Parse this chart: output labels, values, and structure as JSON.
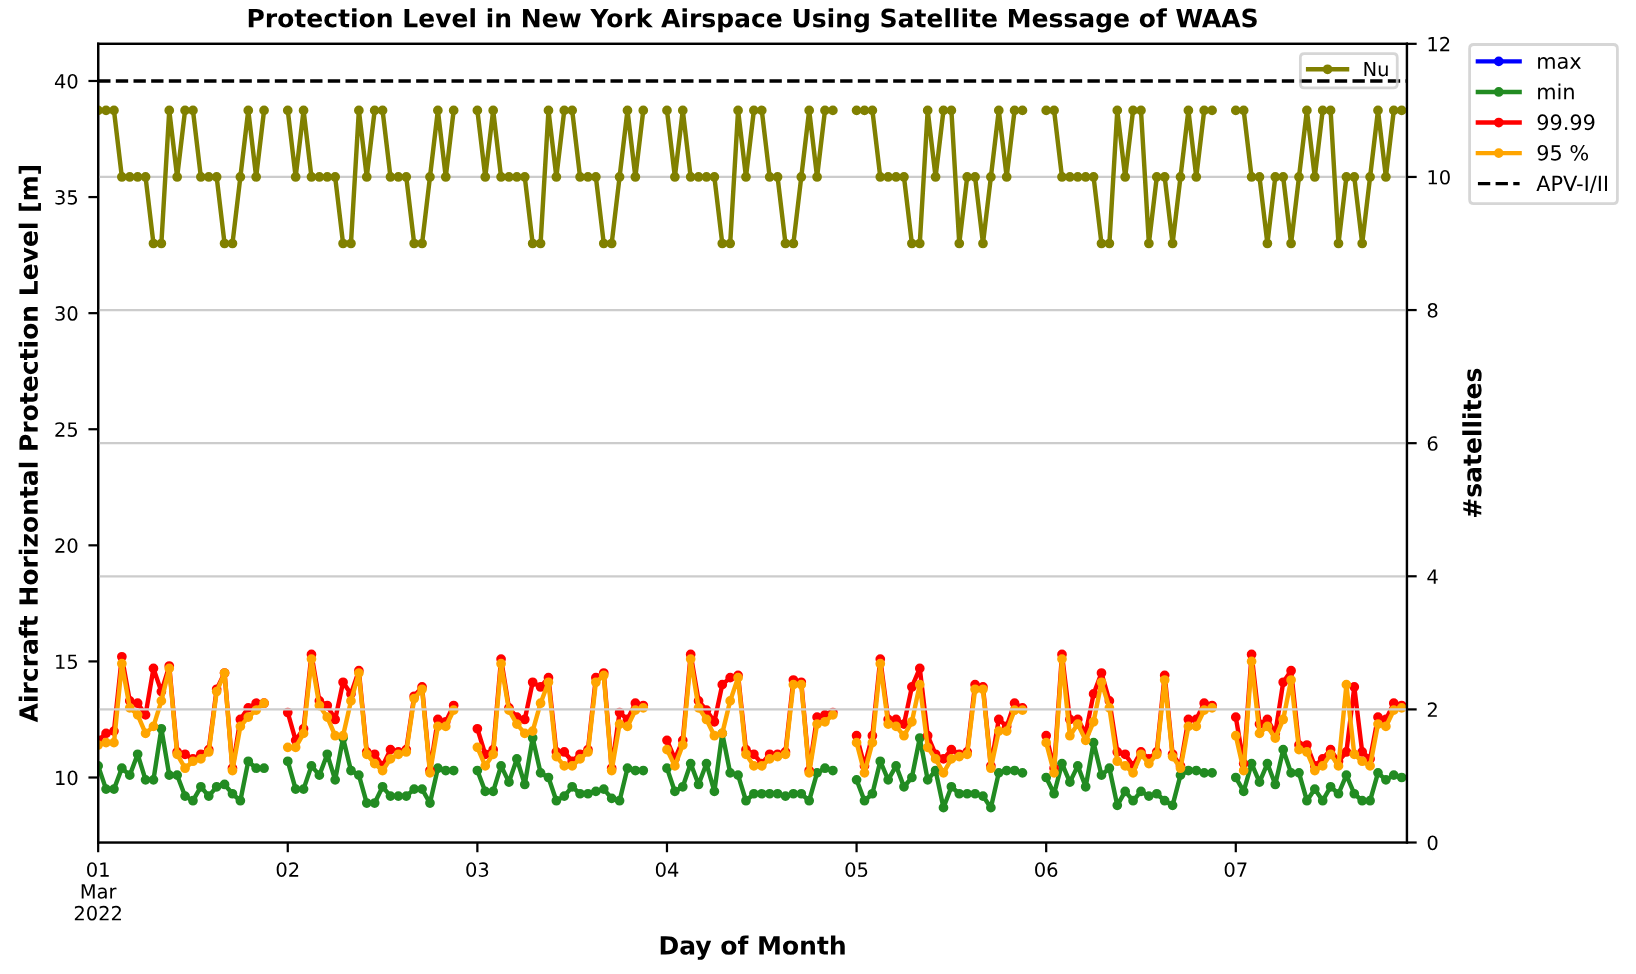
{
  "chart_data": {
    "type": "line",
    "title": "Protection Level in New York Airspace Using Satellite Message of WAAS",
    "xlabel": "Day of Month",
    "ylabel": "Aircraft Horizontal Protection Level [m]",
    "y2label": "#satellites",
    "x": [
      "2022-03-01T00:00",
      "2022-03-01T01:00",
      "2022-03-01T02:00",
      "2022-03-01T03:00",
      "2022-03-01T04:00",
      "2022-03-01T05:00",
      "2022-03-01T06:00",
      "2022-03-01T07:00",
      "2022-03-01T08:00",
      "2022-03-01T09:00",
      "2022-03-01T10:00",
      "2022-03-01T11:00",
      "2022-03-01T12:00",
      "2022-03-01T13:00",
      "2022-03-01T14:00",
      "2022-03-01T15:00",
      "2022-03-01T16:00",
      "2022-03-01T17:00",
      "2022-03-01T18:00",
      "2022-03-01T19:00",
      "2022-03-01T20:00",
      "2022-03-01T21:00",
      "2022-03-01T22:00",
      "2022-03-02T00:00",
      "2022-03-02T01:00",
      "2022-03-02T02:00",
      "2022-03-02T03:00",
      "2022-03-02T04:00",
      "2022-03-02T05:00",
      "2022-03-02T06:00",
      "2022-03-02T07:00",
      "2022-03-02T08:00",
      "2022-03-02T09:00",
      "2022-03-02T10:00",
      "2022-03-02T11:00",
      "2022-03-02T12:00",
      "2022-03-02T13:00",
      "2022-03-02T14:00",
      "2022-03-02T15:00",
      "2022-03-02T16:00",
      "2022-03-02T17:00",
      "2022-03-02T18:00",
      "2022-03-02T19:00",
      "2022-03-02T20:00",
      "2022-03-02T21:00",
      "2022-03-02T22:00",
      "2022-03-03T00:00",
      "2022-03-03T01:00",
      "2022-03-03T02:00",
      "2022-03-03T03:00",
      "2022-03-03T04:00",
      "2022-03-03T05:00",
      "2022-03-03T06:00",
      "2022-03-03T07:00",
      "2022-03-03T08:00",
      "2022-03-03T09:00",
      "2022-03-03T10:00",
      "2022-03-03T11:00",
      "2022-03-03T12:00",
      "2022-03-03T13:00",
      "2022-03-03T14:00",
      "2022-03-03T15:00",
      "2022-03-03T16:00",
      "2022-03-03T17:00",
      "2022-03-03T18:00",
      "2022-03-03T19:00",
      "2022-03-03T20:00",
      "2022-03-03T21:00",
      "2022-03-03T22:00",
      "2022-03-04T00:00",
      "2022-03-04T01:00",
      "2022-03-04T02:00",
      "2022-03-04T03:00",
      "2022-03-04T04:00",
      "2022-03-04T05:00",
      "2022-03-04T06:00",
      "2022-03-04T07:00",
      "2022-03-04T08:00",
      "2022-03-04T09:00",
      "2022-03-04T10:00",
      "2022-03-04T11:00",
      "2022-03-04T12:00",
      "2022-03-04T13:00",
      "2022-03-04T14:00",
      "2022-03-04T15:00",
      "2022-03-04T16:00",
      "2022-03-04T17:00",
      "2022-03-04T18:00",
      "2022-03-04T19:00",
      "2022-03-04T20:00",
      "2022-03-04T21:00",
      "2022-03-04T22:00",
      "2022-03-05T00:00",
      "2022-03-05T01:00",
      "2022-03-05T02:00",
      "2022-03-05T03:00",
      "2022-03-05T04:00",
      "2022-03-05T05:00",
      "2022-03-05T06:00",
      "2022-03-05T07:00",
      "2022-03-05T08:00",
      "2022-03-05T09:00",
      "2022-03-05T10:00",
      "2022-03-05T11:00",
      "2022-03-05T12:00",
      "2022-03-05T13:00",
      "2022-03-05T14:00",
      "2022-03-05T15:00",
      "2022-03-05T16:00",
      "2022-03-05T17:00",
      "2022-03-05T18:00",
      "2022-03-05T19:00",
      "2022-03-05T20:00",
      "2022-03-05T21:00",
      "2022-03-05T22:00",
      "2022-03-06T00:00",
      "2022-03-06T01:00",
      "2022-03-06T02:00",
      "2022-03-06T03:00",
      "2022-03-06T04:00",
      "2022-03-06T05:00",
      "2022-03-06T06:00",
      "2022-03-06T07:00",
      "2022-03-06T08:00",
      "2022-03-06T09:00",
      "2022-03-06T10:00",
      "2022-03-06T11:00",
      "2022-03-06T12:00",
      "2022-03-06T13:00",
      "2022-03-06T14:00",
      "2022-03-06T15:00",
      "2022-03-06T16:00",
      "2022-03-06T17:00",
      "2022-03-06T18:00",
      "2022-03-06T19:00",
      "2022-03-06T20:00",
      "2022-03-06T21:00",
      "2022-03-06T22:00",
      "2022-03-07T00:00",
      "2022-03-07T01:00",
      "2022-03-07T02:00",
      "2022-03-07T03:00",
      "2022-03-07T04:00",
      "2022-03-07T05:00",
      "2022-03-07T06:00",
      "2022-03-07T07:00",
      "2022-03-07T08:00",
      "2022-03-07T09:00",
      "2022-03-07T10:00",
      "2022-03-07T11:00",
      "2022-03-07T12:00",
      "2022-03-07T13:00",
      "2022-03-07T14:00",
      "2022-03-07T15:00",
      "2022-03-07T16:00",
      "2022-03-07T17:00",
      "2022-03-07T18:00",
      "2022-03-07T19:00",
      "2022-03-07T20:00",
      "2022-03-07T21:00"
    ],
    "series": [
      {
        "name": "max",
        "color": "#0000ff",
        "values": [
          null,
          null,
          null,
          null,
          null,
          null,
          null,
          null,
          null,
          null,
          null,
          null,
          null,
          null,
          null,
          null,
          null,
          null,
          null,
          null,
          null,
          null,
          null,
          null,
          null,
          null,
          null,
          null,
          null,
          null,
          null,
          null,
          null,
          null,
          null,
          null,
          null,
          null,
          null,
          null,
          null,
          null,
          null,
          null,
          null,
          null,
          null,
          null,
          null,
          null,
          null,
          null,
          null,
          null,
          null,
          null,
          null,
          null,
          null,
          null,
          null,
          null,
          null,
          null,
          null,
          null,
          null,
          null,
          null,
          null,
          null,
          null,
          null,
          null,
          null,
          null,
          null,
          null,
          null,
          null,
          null,
          null,
          null,
          null,
          null,
          null,
          null,
          null,
          null,
          null,
          null,
          null,
          null,
          null,
          null,
          null,
          null,
          null,
          null,
          null,
          null,
          null,
          null,
          null,
          null,
          null,
          null,
          null,
          null,
          null,
          null,
          null,
          null,
          null,
          null,
          null,
          null,
          null,
          null,
          null,
          null,
          null,
          null,
          null,
          null,
          null,
          null,
          null,
          null,
          null,
          null,
          null,
          null,
          null,
          null,
          null,
          null,
          null,
          null,
          null,
          null,
          null,
          null,
          null,
          null,
          null,
          null,
          null,
          null,
          null,
          null,
          null,
          null,
          null,
          null,
          null,
          null,
          null,
          null,
          null
        ]
      },
      {
        "name": "min",
        "color": "#228b22",
        "values": [
          10.5,
          9.5,
          9.5,
          10.4,
          10.1,
          11.0,
          9.9,
          9.9,
          12.1,
          10.1,
          10.1,
          9.2,
          9.0,
          9.6,
          9.2,
          9.6,
          9.7,
          9.3,
          9.0,
          10.7,
          10.4,
          10.4,
          null,
          10.7,
          9.5,
          9.5,
          10.5,
          10.1,
          11.0,
          9.9,
          11.7,
          10.3,
          10.1,
          8.9,
          8.9,
          9.6,
          9.2,
          9.2,
          9.2,
          9.5,
          9.5,
          8.9,
          10.4,
          10.3,
          10.3,
          null,
          10.3,
          9.4,
          9.4,
          10.5,
          9.8,
          10.8,
          9.7,
          11.7,
          10.2,
          10.0,
          9.0,
          9.2,
          9.6,
          9.3,
          9.3,
          9.4,
          9.5,
          9.1,
          9.0,
          10.4,
          10.3,
          10.3,
          null,
          10.4,
          9.4,
          9.6,
          10.6,
          9.7,
          10.6,
          9.4,
          11.9,
          10.2,
          10.1,
          9.0,
          9.3,
          9.3,
          9.3,
          9.3,
          9.2,
          9.3,
          9.3,
          9.0,
          10.2,
          10.4,
          10.3,
          null,
          9.9,
          9.0,
          9.3,
          10.7,
          9.9,
          10.5,
          9.6,
          10.0,
          11.7,
          9.9,
          10.3,
          8.7,
          9.6,
          9.3,
          9.3,
          9.3,
          9.2,
          8.7,
          10.2,
          10.3,
          10.3,
          10.2,
          null,
          10.0,
          9.3,
          10.6,
          9.8,
          10.5,
          9.6,
          11.5,
          10.1,
          10.4,
          8.8,
          9.4,
          9.0,
          9.4,
          9.2,
          9.3,
          9.0,
          8.8,
          10.1,
          10.3,
          10.3,
          10.2,
          10.2,
          null,
          10.0,
          9.4,
          10.6,
          9.8,
          10.6,
          9.7,
          11.2,
          10.2,
          10.2,
          9.0,
          9.5,
          9.0,
          9.6,
          9.3,
          10.1,
          9.3,
          9.0,
          9.0,
          10.2,
          9.9,
          10.1,
          10.0
        ]
      },
      {
        "name": "99.99",
        "color": "#ff0000",
        "values": [
          11.6,
          11.9,
          12.0,
          15.2,
          13.3,
          13.2,
          12.7,
          14.7,
          13.7,
          14.8,
          11.1,
          11.0,
          10.8,
          11.0,
          11.2,
          13.8,
          14.5,
          10.4,
          12.5,
          13.0,
          13.2,
          13.2,
          null,
          12.8,
          11.6,
          12.1,
          15.3,
          13.3,
          13.1,
          12.5,
          14.1,
          13.6,
          14.6,
          11.1,
          11.0,
          10.5,
          11.2,
          11.1,
          11.2,
          13.5,
          13.9,
          10.3,
          12.5,
          12.4,
          13.1,
          null,
          12.1,
          11.0,
          11.2,
          15.1,
          13.0,
          12.6,
          12.5,
          14.1,
          13.9,
          14.3,
          11.1,
          11.1,
          10.7,
          11.0,
          11.2,
          14.3,
          14.5,
          10.4,
          12.8,
          12.5,
          13.2,
          13.1,
          null,
          11.6,
          10.8,
          11.6,
          15.3,
          13.3,
          12.9,
          12.4,
          14.0,
          14.3,
          14.4,
          11.2,
          11.0,
          10.6,
          11.0,
          11.0,
          11.1,
          14.2,
          14.1,
          10.3,
          12.6,
          12.7,
          12.8,
          null,
          11.8,
          10.5,
          11.8,
          15.1,
          12.5,
          12.5,
          12.3,
          13.9,
          14.7,
          11.8,
          11.0,
          10.8,
          11.2,
          11.0,
          11.1,
          14.0,
          13.9,
          10.5,
          12.5,
          12.2,
          13.2,
          13.0,
          null,
          11.8,
          10.4,
          15.3,
          12.5,
          12.5,
          11.9,
          13.6,
          14.5,
          13.3,
          11.1,
          11.0,
          10.5,
          11.1,
          10.8,
          11.1,
          14.4,
          11.0,
          10.5,
          12.5,
          12.5,
          13.2,
          13.1,
          null,
          12.6,
          10.6,
          15.3,
          12.3,
          12.5,
          11.9,
          14.1,
          14.6,
          11.4,
          11.4,
          10.5,
          10.8,
          11.2,
          10.7,
          11.1,
          13.9,
          11.1,
          10.8,
          12.6,
          12.5,
          13.2,
          13.1
        ]
      },
      {
        "name": "95 %",
        "color": "#ffa500",
        "values": [
          11.4,
          11.5,
          11.5,
          14.9,
          13.0,
          12.7,
          11.9,
          12.2,
          13.3,
          14.7,
          11.0,
          10.4,
          10.7,
          10.8,
          11.1,
          13.7,
          14.5,
          10.3,
          12.2,
          12.6,
          12.9,
          13.2,
          null,
          11.3,
          11.3,
          11.9,
          15.1,
          13.1,
          12.6,
          11.8,
          11.8,
          13.3,
          14.5,
          11.0,
          10.6,
          10.3,
          10.8,
          11.0,
          11.1,
          13.4,
          13.8,
          10.2,
          12.2,
          12.2,
          12.9,
          null,
          11.3,
          10.5,
          11.0,
          14.9,
          12.9,
          12.3,
          11.9,
          12.0,
          13.2,
          14.1,
          10.9,
          10.5,
          10.5,
          10.8,
          11.1,
          14.1,
          14.4,
          10.3,
          12.3,
          12.2,
          12.9,
          13.0,
          null,
          11.2,
          10.5,
          11.4,
          15.1,
          13.0,
          12.5,
          11.8,
          11.9,
          13.3,
          14.3,
          11.0,
          10.5,
          10.5,
          10.8,
          10.9,
          11.0,
          14.0,
          14.0,
          10.2,
          12.3,
          12.4,
          12.7,
          null,
          11.5,
          10.2,
          11.5,
          14.9,
          12.3,
          12.2,
          11.8,
          12.4,
          14.0,
          11.3,
          10.8,
          10.2,
          10.8,
          10.9,
          11.0,
          13.8,
          13.8,
          10.4,
          12.0,
          12.0,
          12.9,
          12.9,
          null,
          11.5,
          10.2,
          15.1,
          11.8,
          12.3,
          11.6,
          12.4,
          14.1,
          13.0,
          10.7,
          10.5,
          10.2,
          11.0,
          10.6,
          11.0,
          14.2,
          10.9,
          10.4,
          12.2,
          12.2,
          12.9,
          13.0,
          null,
          11.8,
          10.3,
          15.0,
          11.9,
          12.2,
          11.7,
          12.5,
          14.2,
          11.2,
          11.1,
          10.3,
          10.5,
          11.0,
          10.5,
          14.0,
          11.0,
          10.7,
          10.5,
          12.3,
          12.2,
          12.9,
          13.0
        ]
      },
      {
        "name": "Nu",
        "color": "#808000",
        "axis": "y2",
        "values": [
          11,
          11,
          11,
          10,
          10,
          10,
          10,
          9,
          9,
          11,
          10,
          11,
          11,
          10,
          10,
          10,
          9,
          9,
          10,
          11,
          10,
          11,
          null,
          11,
          10,
          11,
          10,
          10,
          10,
          10,
          9,
          9,
          11,
          10,
          11,
          11,
          10,
          10,
          10,
          9,
          9,
          10,
          11,
          10,
          11,
          null,
          11,
          10,
          11,
          10,
          10,
          10,
          10,
          9,
          9,
          11,
          10,
          11,
          11,
          10,
          10,
          10,
          9,
          9,
          10,
          11,
          10,
          11,
          null,
          11,
          10,
          11,
          10,
          10,
          10,
          10,
          9,
          9,
          11,
          10,
          11,
          11,
          10,
          10,
          9,
          9,
          10,
          11,
          10,
          11,
          11,
          null,
          11,
          11,
          11,
          10,
          10,
          10,
          10,
          9,
          9,
          11,
          10,
          11,
          11,
          9,
          10,
          10,
          9,
          10,
          11,
          10,
          11,
          11,
          null,
          11,
          11,
          10,
          10,
          10,
          10,
          10,
          9,
          9,
          11,
          10,
          11,
          11,
          9,
          10,
          10,
          9,
          10,
          11,
          10,
          11,
          11,
          null,
          11,
          11,
          10,
          10,
          9,
          10,
          10,
          9,
          10,
          11,
          10,
          11,
          11,
          9,
          10,
          10,
          9,
          10,
          11,
          10,
          11,
          11
        ]
      }
    ],
    "ref_lines": [
      {
        "axis": "y",
        "value": 40,
        "label": "APV-I/II",
        "color": "#000000",
        "line_style": "dashed"
      }
    ],
    "xlim": [
      "2022-03-01T00:00",
      "2022-03-07T21:40"
    ],
    "xticks": [
      {
        "value": "2022-03-01",
        "label": "01\nMar\n2022"
      },
      {
        "value": "2022-03-02",
        "label": "02"
      },
      {
        "value": "2022-03-03",
        "label": "03"
      },
      {
        "value": "2022-03-04",
        "label": "04"
      },
      {
        "value": "2022-03-05",
        "label": "05"
      },
      {
        "value": "2022-03-06",
        "label": "06"
      },
      {
        "value": "2022-03-07",
        "label": "07"
      }
    ],
    "ylim": [
      7.2,
      41.6
    ],
    "yticks": [
      10,
      15,
      20,
      25,
      30,
      35,
      40
    ],
    "y2lim": [
      0,
      12
    ],
    "y2ticks": [
      0,
      2,
      4,
      6,
      8,
      10,
      12
    ],
    "grid": "y2",
    "legend": "top right",
    "marker": "circle",
    "line_style": "solid"
  }
}
